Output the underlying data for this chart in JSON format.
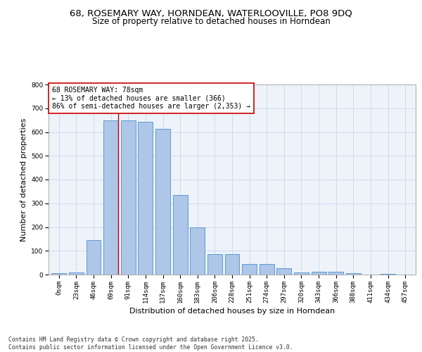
{
  "title_line1": "68, ROSEMARY WAY, HORNDEAN, WATERLOOVILLE, PO8 9DQ",
  "title_line2": "Size of property relative to detached houses in Horndean",
  "xlabel": "Distribution of detached houses by size in Horndean",
  "ylabel": "Number of detached properties",
  "categories": [
    "0sqm",
    "23sqm",
    "46sqm",
    "69sqm",
    "91sqm",
    "114sqm",
    "137sqm",
    "160sqm",
    "183sqm",
    "206sqm",
    "228sqm",
    "251sqm",
    "274sqm",
    "297sqm",
    "320sqm",
    "343sqm",
    "366sqm",
    "388sqm",
    "411sqm",
    "434sqm",
    "457sqm"
  ],
  "values": [
    5,
    8,
    145,
    648,
    648,
    643,
    612,
    335,
    198,
    85,
    85,
    45,
    45,
    27,
    10,
    12,
    12,
    5,
    0,
    3,
    0
  ],
  "bar_color": "#aec6e8",
  "bar_edge_color": "#5b9bd5",
  "annotation_text": "68 ROSEMARY WAY: 78sqm\n← 13% of detached houses are smaller (366)\n86% of semi-detached houses are larger (2,353) →",
  "annotation_box_color": "#ffffff",
  "annotation_box_edge": "#cc0000",
  "vline_color": "#cc0000",
  "ylim": [
    0,
    800
  ],
  "yticks": [
    0,
    100,
    200,
    300,
    400,
    500,
    600,
    700,
    800
  ],
  "grid_color": "#c8d8ee",
  "bg_color": "#eef3fa",
  "footnote": "Contains HM Land Registry data © Crown copyright and database right 2025.\nContains public sector information licensed under the Open Government Licence v3.0.",
  "title_fontsize": 9.5,
  "subtitle_fontsize": 8.5,
  "axis_label_fontsize": 8,
  "tick_fontsize": 6.5,
  "annot_fontsize": 7,
  "footnote_fontsize": 5.8
}
